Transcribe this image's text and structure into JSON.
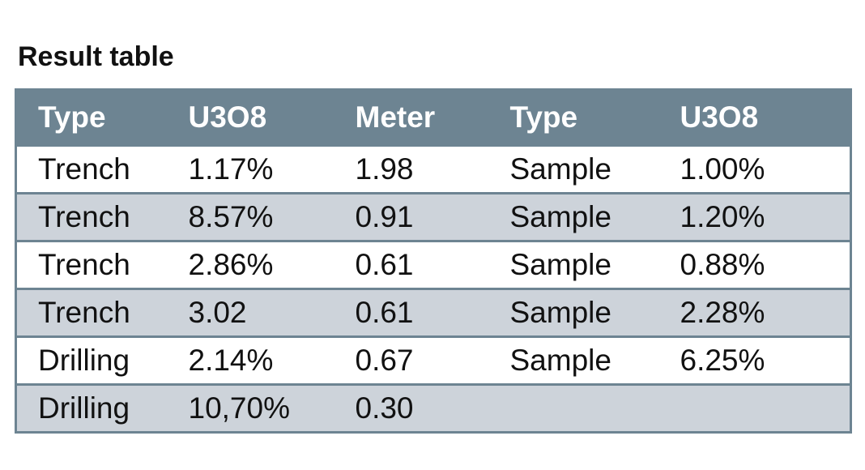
{
  "title": "Result table",
  "table": {
    "header": [
      "Type",
      "U3O8",
      "Meter",
      "Type",
      "U3O8"
    ],
    "rows": [
      [
        "Trench",
        "1.17%",
        "1.98",
        "Sample",
        "1.00%"
      ],
      [
        "Trench",
        "8.57%",
        "0.91",
        "Sample",
        "1.20%"
      ],
      [
        "Trench",
        "2.86%",
        "0.61",
        "Sample",
        "0.88%"
      ],
      [
        "Trench",
        "3.02",
        "0.61",
        "Sample",
        "2.28%"
      ],
      [
        "Drilling",
        "2.14%",
        "0.67",
        "Sample",
        "6.25%"
      ],
      [
        "Drilling",
        "10,70%",
        "0.30"
      ]
    ]
  }
}
